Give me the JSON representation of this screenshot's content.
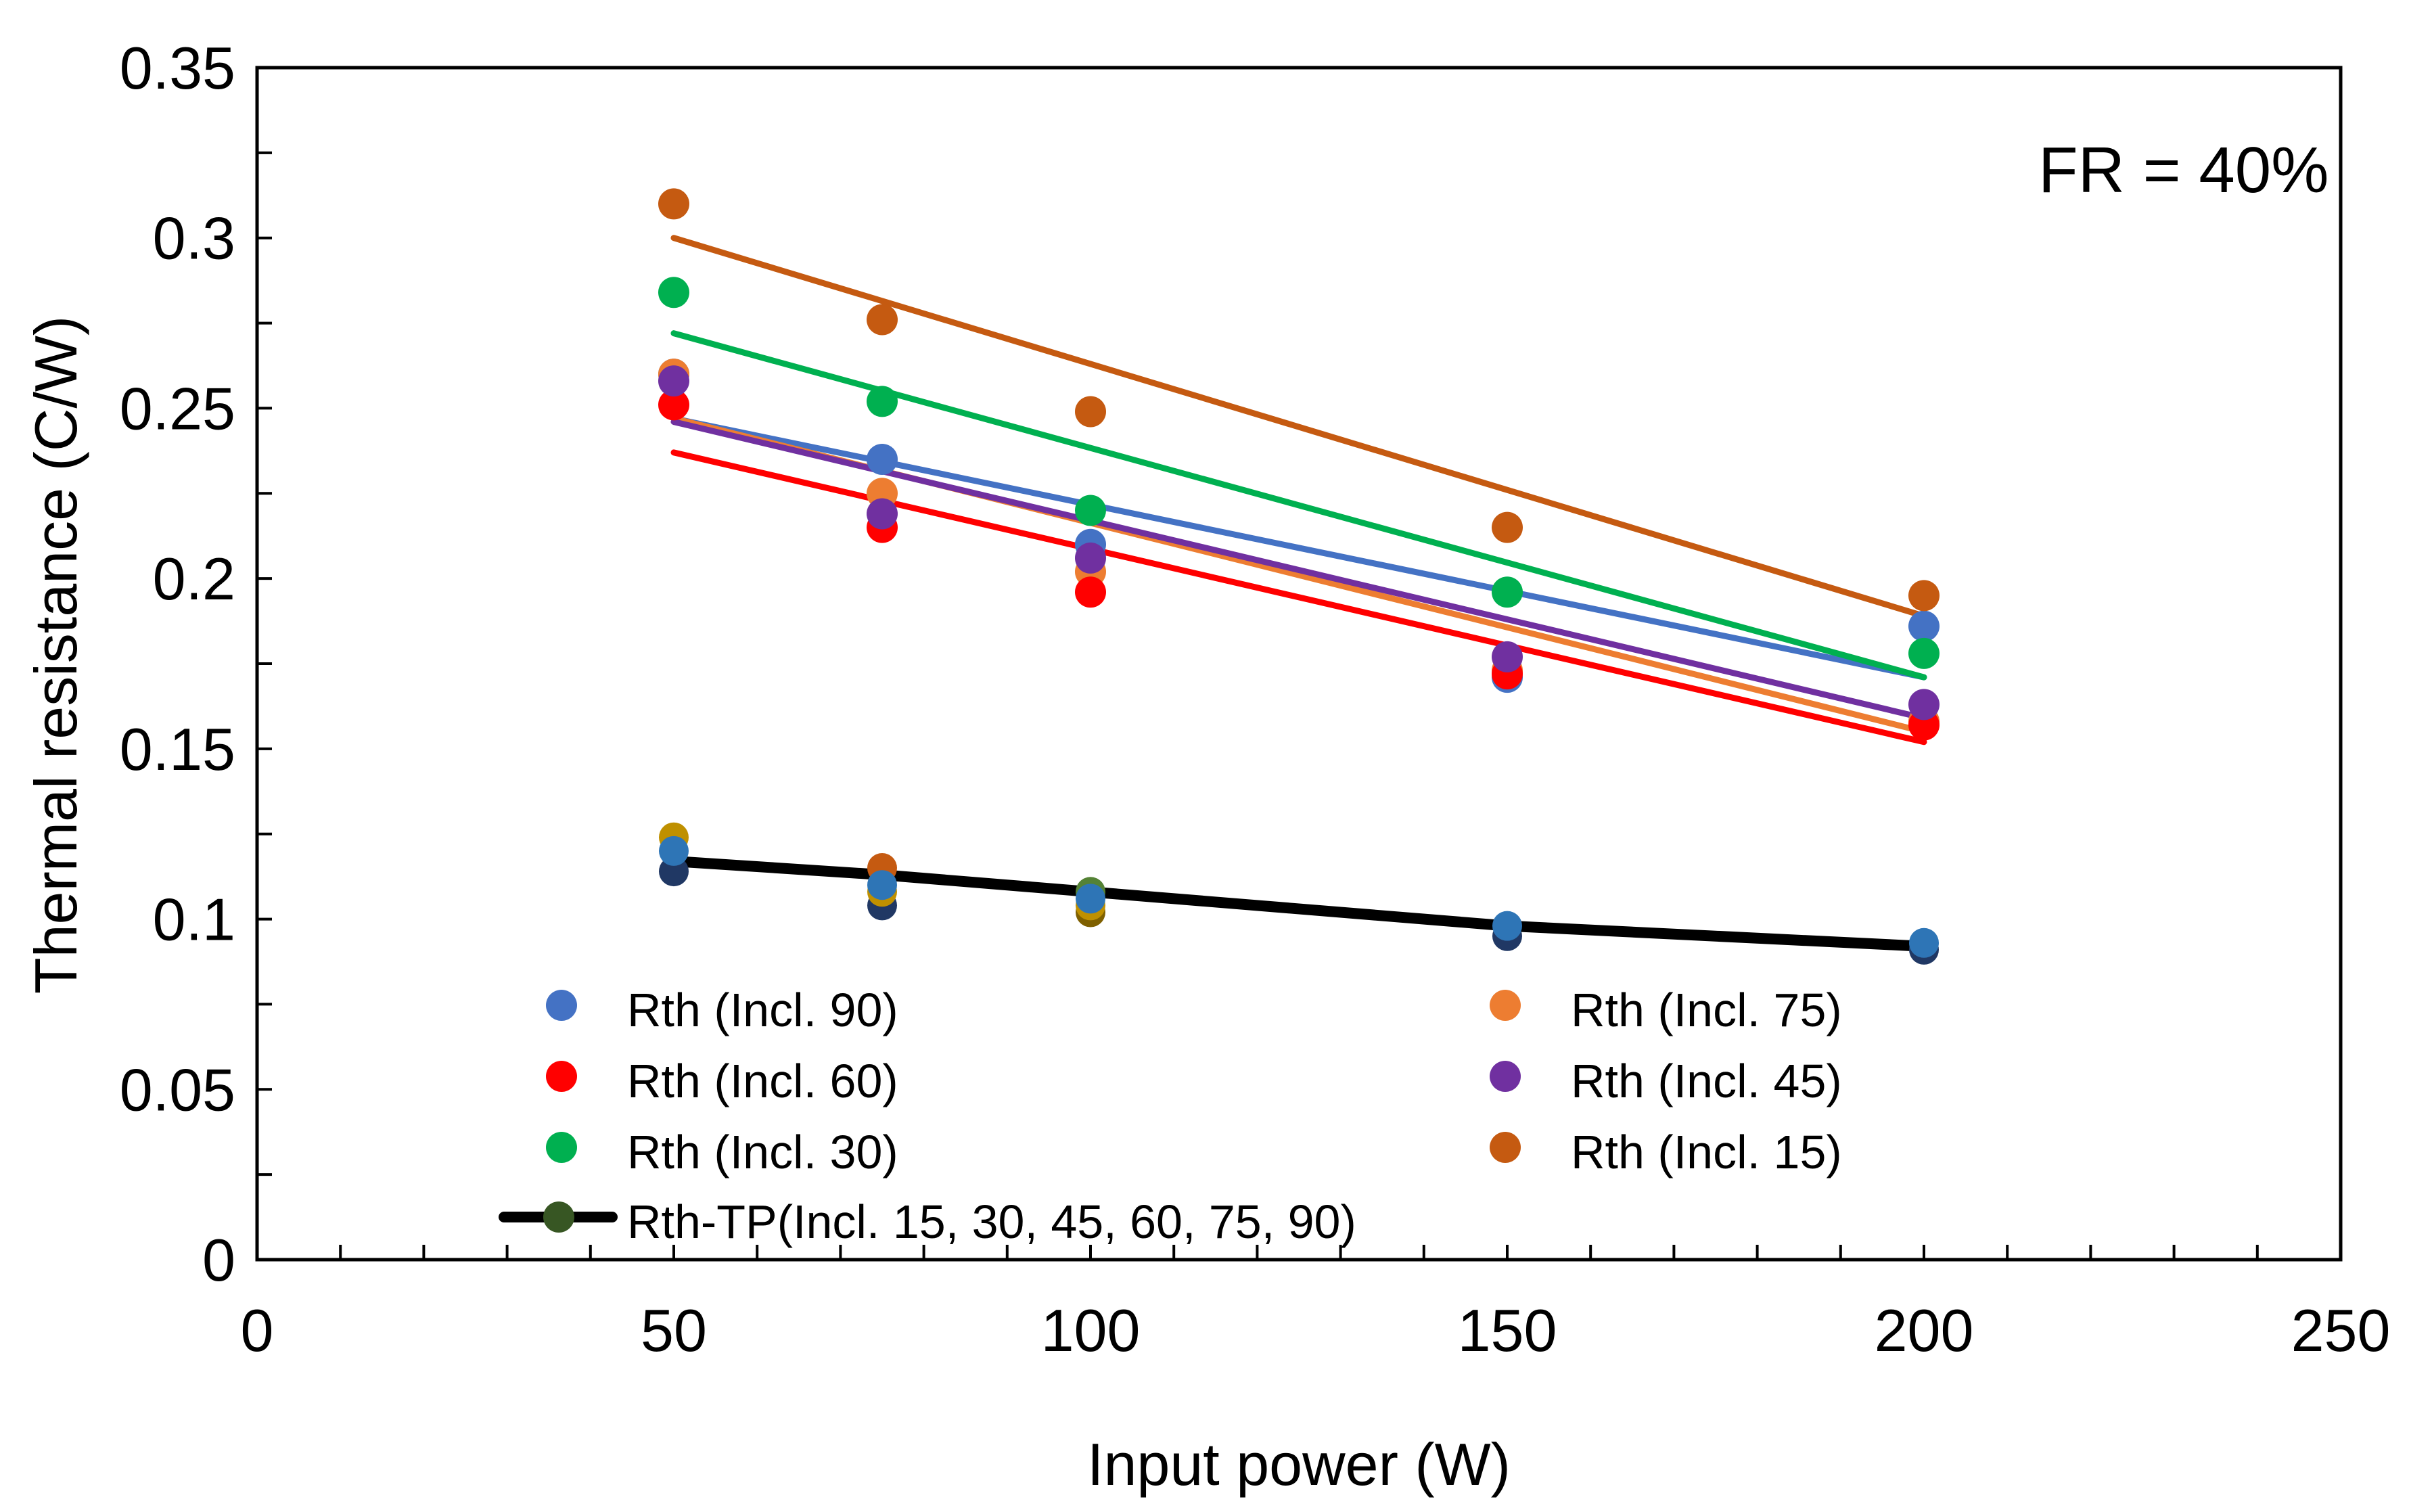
{
  "chart_data": {
    "type": "scatter",
    "title": "",
    "annotation": "FR = 40%",
    "xlabel": "Input power (W)",
    "ylabel": "Thermal resistance (C/W)",
    "xlim": [
      0,
      250
    ],
    "ylim": [
      0,
      0.35
    ],
    "xticks": [
      0,
      50,
      100,
      150,
      200,
      250
    ],
    "xtick_labels": [
      "0",
      "50",
      "100",
      "150",
      "200",
      "250"
    ],
    "yticks": [
      0,
      0.05,
      0.1,
      0.15,
      0.2,
      0.25,
      0.3,
      0.35
    ],
    "ytick_labels": [
      "0",
      "0.05",
      "0.1",
      "0.15",
      "0.2",
      "0.25",
      "0.3",
      "0.35"
    ],
    "x_minor_step": 10,
    "y_minor_step": 0.025,
    "grid": false,
    "legend_position": "bottom-inside",
    "series": [
      {
        "name": "Rth (Incl. 90)",
        "color": "#4472C4",
        "x": [
          50,
          75,
          100,
          150,
          200
        ],
        "y": [
          0.26,
          0.235,
          0.21,
          0.171,
          0.186
        ],
        "trend": [
          0.247,
          0.171
        ]
      },
      {
        "name": "Rth (Incl. 75)",
        "color": "#ED7D31",
        "x": [
          50,
          75,
          100,
          150,
          200
        ],
        "y": [
          0.26,
          0.225,
          0.202,
          0.173,
          0.158
        ],
        "trend": [
          0.247,
          0.155
        ]
      },
      {
        "name": "Rth (Incl. 60)",
        "color": "#FF0000",
        "x": [
          50,
          75,
          100,
          150,
          200
        ],
        "y": [
          0.251,
          0.215,
          0.196,
          0.172,
          0.157
        ],
        "trend": [
          0.237,
          0.152
        ]
      },
      {
        "name": "Rth (Incl. 45)",
        "color": "#7030A0",
        "x": [
          50,
          75,
          100,
          150,
          200
        ],
        "y": [
          0.258,
          0.219,
          0.206,
          0.177,
          0.163
        ],
        "trend": [
          0.246,
          0.159
        ]
      },
      {
        "name": "Rth (Incl. 30)",
        "color": "#00B050",
        "x": [
          50,
          75,
          100,
          150,
          200
        ],
        "y": [
          0.284,
          0.252,
          0.22,
          0.196,
          0.178
        ],
        "trend": [
          0.272,
          0.171
        ]
      },
      {
        "name": "Rth (Incl. 15)",
        "color": "#C55A11",
        "x": [
          50,
          75,
          100,
          150,
          200
        ],
        "y": [
          0.31,
          0.276,
          0.249,
          0.215,
          0.195
        ],
        "trend": [
          0.3,
          0.189
        ]
      }
    ],
    "tp_series": {
      "name": "Rth-TP(Incl. 15, 30, 45, 60, 75, 90)",
      "line_color": "#000000",
      "marker_color": "#375623",
      "x": [
        50,
        75,
        100,
        150,
        200
      ],
      "line_y": [
        0.117,
        0.113,
        0.108,
        0.098,
        0.092
      ],
      "points": [
        {
          "x": 50,
          "y": 0.124,
          "color": "#BF9000"
        },
        {
          "x": 50,
          "y": 0.114,
          "color": "#203864"
        },
        {
          "x": 50,
          "y": 0.12,
          "color": "#2E75B6"
        },
        {
          "x": 75,
          "y": 0.115,
          "color": "#C55A11"
        },
        {
          "x": 75,
          "y": 0.104,
          "color": "#203864"
        },
        {
          "x": 75,
          "y": 0.108,
          "color": "#BF9000"
        },
        {
          "x": 75,
          "y": 0.11,
          "color": "#2E75B6"
        },
        {
          "x": 100,
          "y": 0.108,
          "color": "#548235"
        },
        {
          "x": 100,
          "y": 0.102,
          "color": "#7F6000"
        },
        {
          "x": 100,
          "y": 0.104,
          "color": "#BF9000"
        },
        {
          "x": 100,
          "y": 0.106,
          "color": "#2E75B6"
        },
        {
          "x": 150,
          "y": 0.095,
          "color": "#203864"
        },
        {
          "x": 150,
          "y": 0.098,
          "color": "#2E75B6"
        },
        {
          "x": 200,
          "y": 0.091,
          "color": "#203864"
        },
        {
          "x": 200,
          "y": 0.093,
          "color": "#2E75B6"
        }
      ]
    }
  }
}
